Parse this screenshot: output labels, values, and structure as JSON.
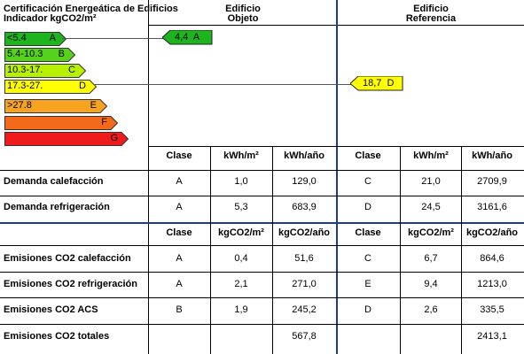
{
  "header": {
    "title_line1": "Certificación Energeática de Edificios",
    "title_line2": "Indicador kgCO2/m²",
    "col_obj_1": "Edificio",
    "col_obj_2": "Objeto",
    "col_ref_1": "Edificio",
    "col_ref_2": "Referencia"
  },
  "scale": [
    {
      "range": "<5.4",
      "letter": "A",
      "color": "#1db41d"
    },
    {
      "range": "5.4-10.3",
      "letter": "B",
      "color": "#55d21c"
    },
    {
      "range": "10.3-17.",
      "letter": "C",
      "color": "#b7f000"
    },
    {
      "range": "17.3-27.",
      "letter": "D",
      "color": "#ffff00"
    },
    {
      "range": ">27.8",
      "letter": "E",
      "color": "#f5a321"
    },
    {
      "range": "",
      "letter": "F",
      "color": "#f36b1a"
    },
    {
      "range": "",
      "letter": "G",
      "color": "#ee1c1c"
    }
  ],
  "markers": {
    "objeto": {
      "text": "4,4  A",
      "color": "#1db41d"
    },
    "referencia": {
      "text": "18,7  D",
      "color": "#ffff00"
    }
  },
  "demand": {
    "headers": [
      "Clase",
      "kWh/m²",
      "kWh/año",
      "Clase",
      "kWh/m²",
      "kWh/año"
    ],
    "rows": [
      {
        "label": "Demanda calefacción",
        "values": [
          "A",
          "1,0",
          "129,0",
          "C",
          "21,0",
          "2709,9"
        ]
      },
      {
        "label": "Demanda refrigeración",
        "values": [
          "A",
          "5,3",
          "683,9",
          "D",
          "24,5",
          "3161,6"
        ]
      }
    ]
  },
  "emissions": {
    "headers": [
      "Clase",
      "kgCO2/m²",
      "kgCO2/año",
      "Clase",
      "kgCO2/m²",
      "kgCO2/año"
    ],
    "rows": [
      {
        "label": "Emisiones CO2 calefacción",
        "values": [
          "A",
          "0,4",
          "51,6",
          "C",
          "6,7",
          "864,6"
        ]
      },
      {
        "label": "Emisiones CO2 refrigeración",
        "values": [
          "A",
          "2,1",
          "271,0",
          "E",
          "9,4",
          "1213,0"
        ]
      },
      {
        "label": "Emisiones CO2 ACS",
        "values": [
          "B",
          "1,9",
          "245,2",
          "D",
          "2,6",
          "335,5"
        ]
      },
      {
        "label": "Emisiones CO2 totales",
        "values": [
          "",
          "",
          "567,8",
          "",
          "",
          "2413,1"
        ]
      }
    ]
  }
}
